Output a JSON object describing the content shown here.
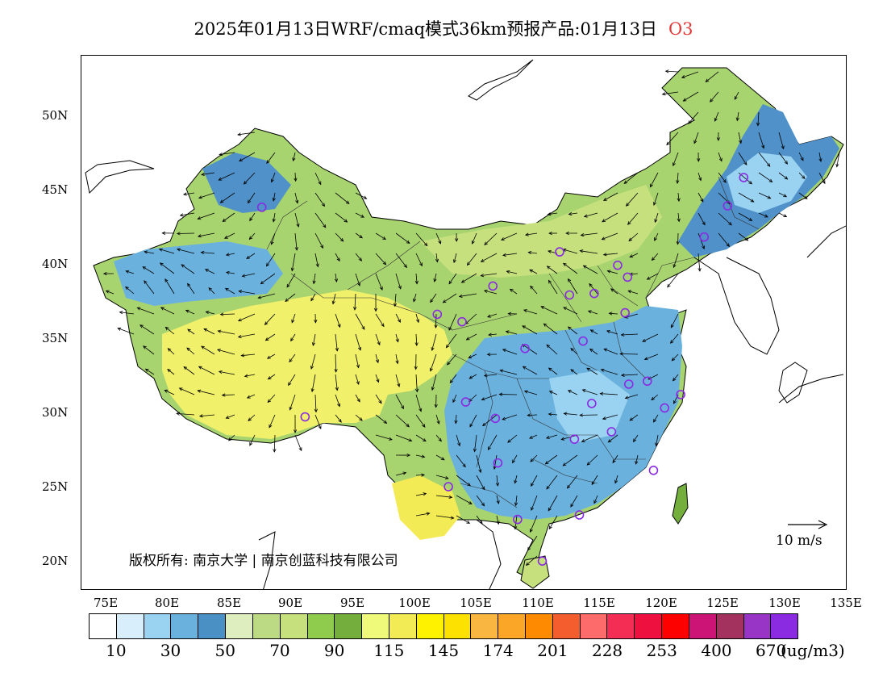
{
  "title": {
    "main": "2025年01月13日WRF/cmaq模式36km预报产品:01月13日",
    "pollutant": "O3"
  },
  "map": {
    "lat_ticks": [
      "50N",
      "45N",
      "40N",
      "35N",
      "30N",
      "25N",
      "20N"
    ],
    "lon_ticks": [
      "75E",
      "80E",
      "85E",
      "90E",
      "95E",
      "100E",
      "105E",
      "110E",
      "115E",
      "120E",
      "125E",
      "130E",
      "135E"
    ],
    "copyright": "版权所有: 南京大学 | 南京创蓝科技有限公司",
    "wind_scale": "10 m/s",
    "colors": {
      "land_low": "#4f91c8",
      "land_mid": "#a8d46f",
      "plateau": "#f0f06a",
      "sea": "#ffffff",
      "station_marker": "#8a2be2"
    }
  },
  "legend": {
    "colors": [
      "#ffffff",
      "#d8eefa",
      "#9ad3f2",
      "#6ab1de",
      "#4a90c4",
      "#dfeebf",
      "#bcd983",
      "#c6e07e",
      "#8fcc4d",
      "#74ae3c",
      "#f0fa7a",
      "#f3eb55",
      "#fff200",
      "#fde100",
      "#f9b742",
      "#fba626",
      "#fd8a00",
      "#f45d2d",
      "#fd6b6b",
      "#f42d55",
      "#ee1140",
      "#fd0000",
      "#cc1476",
      "#a4325f",
      "#9935c6",
      "#8a2be2"
    ],
    "labels": [
      "10",
      "30",
      "50",
      "70",
      "90",
      "115",
      "145",
      "174",
      "201",
      "228",
      "253",
      "400",
      "670"
    ],
    "unit": "(ug/m3)"
  },
  "chart_data": {
    "type": "heatmap",
    "title": "2025年01月13日WRF/cmaq模式36km预报产品:01月13日 O3",
    "xlim": [
      73,
      135
    ],
    "ylim": [
      18,
      54
    ],
    "x_ticks": [
      "75E",
      "80E",
      "85E",
      "90E",
      "95E",
      "100E",
      "105E",
      "110E",
      "115E",
      "120E",
      "125E",
      "130E",
      "135E"
    ],
    "y_ticks": [
      "20N",
      "25N",
      "30N",
      "35N",
      "40N",
      "45N",
      "50N"
    ],
    "colorbar": {
      "thresholds": [
        10,
        30,
        50,
        70,
        90,
        115,
        145,
        174,
        201,
        228,
        253,
        400,
        670
      ],
      "unit": "(ug/m3)"
    },
    "stations": [
      {
        "lon": 87.6,
        "lat": 43.8
      },
      {
        "lon": 91.1,
        "lat": 29.7
      },
      {
        "lon": 101.8,
        "lat": 36.6
      },
      {
        "lon": 103.8,
        "lat": 36.1
      },
      {
        "lon": 106.3,
        "lat": 38.5
      },
      {
        "lon": 111.7,
        "lat": 40.8
      },
      {
        "lon": 112.5,
        "lat": 37.9
      },
      {
        "lon": 114.5,
        "lat": 38.0
      },
      {
        "lon": 116.4,
        "lat": 39.9
      },
      {
        "lon": 117.2,
        "lat": 39.1
      },
      {
        "lon": 123.4,
        "lat": 41.8
      },
      {
        "lon": 125.3,
        "lat": 43.9
      },
      {
        "lon": 126.6,
        "lat": 45.8
      },
      {
        "lon": 117.0,
        "lat": 36.7
      },
      {
        "lon": 113.6,
        "lat": 34.8
      },
      {
        "lon": 108.9,
        "lat": 34.3
      },
      {
        "lon": 104.1,
        "lat": 30.7
      },
      {
        "lon": 106.5,
        "lat": 29.6
      },
      {
        "lon": 114.3,
        "lat": 30.6
      },
      {
        "lon": 117.3,
        "lat": 31.9
      },
      {
        "lon": 118.8,
        "lat": 32.1
      },
      {
        "lon": 121.5,
        "lat": 31.2
      },
      {
        "lon": 120.2,
        "lat": 30.3
      },
      {
        "lon": 112.9,
        "lat": 28.2
      },
      {
        "lon": 115.9,
        "lat": 28.7
      },
      {
        "lon": 106.7,
        "lat": 26.6
      },
      {
        "lon": 102.7,
        "lat": 25.0
      },
      {
        "lon": 108.3,
        "lat": 22.8
      },
      {
        "lon": 113.3,
        "lat": 23.1
      },
      {
        "lon": 119.3,
        "lat": 26.1
      },
      {
        "lon": 110.3,
        "lat": 20.0
      }
    ]
  }
}
